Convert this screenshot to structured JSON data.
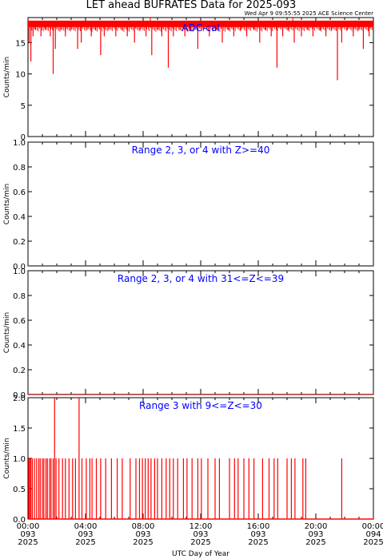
{
  "title": "LET ahead BUFRATES Data for 2025-093",
  "timestamp": "Wed Apr  9 09:55:55 2025 ACE Science Center",
  "xlabel": "UTC Day of Year",
  "colors": {
    "data": "#ff0000",
    "panel_title": "#0000ff",
    "axes": "#000000"
  },
  "x_ticks": [
    {
      "time": "00:00",
      "doy": "093",
      "year": "2025"
    },
    {
      "time": "04:00",
      "doy": "093",
      "year": "2025"
    },
    {
      "time": "08:00",
      "doy": "093",
      "year": "2025"
    },
    {
      "time": "12:00",
      "doy": "093",
      "year": "2025"
    },
    {
      "time": "16:00",
      "doy": "093",
      "year": "2025"
    },
    {
      "time": "20:00",
      "doy": "093",
      "year": "2025"
    },
    {
      "time": "00:00",
      "doy": "094",
      "year": "2025"
    }
  ],
  "chart_data": [
    {
      "type": "line",
      "title": "ADC-cal",
      "ylabel": "Counts/min",
      "xlim": [
        0,
        24
      ],
      "ylim": [
        0,
        19
      ],
      "yticks": [
        "0",
        "5",
        "10",
        "15"
      ],
      "ytick_values": [
        0,
        5,
        10,
        15
      ],
      "baseline": 18,
      "dips": [
        [
          0.08,
          15
        ],
        [
          0.2,
          12
        ],
        [
          0.35,
          16
        ],
        [
          0.5,
          17
        ],
        [
          0.9,
          16
        ],
        [
          1.2,
          17
        ],
        [
          1.55,
          16
        ],
        [
          1.75,
          10
        ],
        [
          1.9,
          14
        ],
        [
          2.3,
          17
        ],
        [
          2.6,
          16
        ],
        [
          3.0,
          17
        ],
        [
          3.45,
          14
        ],
        [
          3.7,
          15
        ],
        [
          4.1,
          17
        ],
        [
          4.4,
          16
        ],
        [
          4.7,
          17
        ],
        [
          5.05,
          13
        ],
        [
          5.3,
          16
        ],
        [
          5.6,
          17
        ],
        [
          6.1,
          16
        ],
        [
          6.5,
          17
        ],
        [
          6.9,
          16
        ],
        [
          7.4,
          15
        ],
        [
          7.8,
          17
        ],
        [
          8.2,
          16
        ],
        [
          8.6,
          13
        ],
        [
          9.0,
          17
        ],
        [
          9.3,
          16
        ],
        [
          9.75,
          11
        ],
        [
          10.1,
          16
        ],
        [
          10.5,
          17
        ],
        [
          10.9,
          16
        ],
        [
          11.3,
          17
        ],
        [
          11.8,
          14
        ],
        [
          12.2,
          17
        ],
        [
          12.6,
          16
        ],
        [
          13.1,
          17
        ],
        [
          13.5,
          15
        ],
        [
          13.9,
          17
        ],
        [
          14.3,
          16
        ],
        [
          14.8,
          17
        ],
        [
          15.2,
          16
        ],
        [
          15.7,
          17
        ],
        [
          16.1,
          15
        ],
        [
          16.5,
          17
        ],
        [
          16.9,
          16
        ],
        [
          17.3,
          11
        ],
        [
          17.7,
          16
        ],
        [
          18.1,
          17
        ],
        [
          18.5,
          15
        ],
        [
          19.0,
          16
        ],
        [
          19.4,
          17
        ],
        [
          19.8,
          16
        ],
        [
          20.3,
          17
        ],
        [
          20.7,
          16
        ],
        [
          21.1,
          17
        ],
        [
          21.5,
          9
        ],
        [
          21.8,
          15
        ],
        [
          22.2,
          17
        ],
        [
          22.6,
          16
        ],
        [
          23.0,
          17
        ],
        [
          23.3,
          14
        ],
        [
          23.7,
          16
        ]
      ]
    },
    {
      "type": "line",
      "title": "Range 2, 3, or 4 with Z>=40",
      "ylabel": "Counts/min",
      "xlim": [
        0,
        24
      ],
      "ylim": [
        0,
        1
      ],
      "yticks": [
        "0.0",
        "0.2",
        "0.4",
        "0.6",
        "0.8",
        "1.0"
      ],
      "ytick_values": [
        0,
        0.2,
        0.4,
        0.6,
        0.8,
        1.0
      ],
      "x": [
        0,
        24
      ],
      "values": [
        0,
        0
      ]
    },
    {
      "type": "line",
      "title": "Range 2, 3, or 4 with 31<=Z<=39",
      "ylabel": "Counts/min",
      "xlim": [
        0,
        24
      ],
      "ylim": [
        0,
        1
      ],
      "yticks": [
        "0.0",
        "0.2",
        "0.4",
        "0.6",
        "0.8",
        "1.0"
      ],
      "ytick_values": [
        0,
        0.2,
        0.4,
        0.6,
        0.8,
        1.0
      ],
      "x": [
        0,
        24
      ],
      "values": [
        0,
        0
      ]
    },
    {
      "type": "line",
      "title": "Range 3 with 9<=Z<=30",
      "ylabel": "Counts/min",
      "xlim": [
        0,
        24
      ],
      "ylim": [
        0,
        2
      ],
      "yticks": [
        "0.0",
        "0.5",
        "1.0",
        "1.5",
        "2.0"
      ],
      "ytick_values": [
        0,
        0.5,
        1.0,
        1.5,
        2.0
      ],
      "spikes": [
        [
          0.05,
          1
        ],
        [
          0.12,
          1
        ],
        [
          0.2,
          1
        ],
        [
          0.3,
          1
        ],
        [
          0.45,
          1
        ],
        [
          0.6,
          1
        ],
        [
          0.75,
          1
        ],
        [
          0.85,
          1
        ],
        [
          1.0,
          1
        ],
        [
          1.1,
          1
        ],
        [
          1.25,
          1
        ],
        [
          1.35,
          1
        ],
        [
          1.5,
          1
        ],
        [
          1.6,
          1
        ],
        [
          1.75,
          1
        ],
        [
          1.85,
          2
        ],
        [
          1.95,
          1
        ],
        [
          2.15,
          1
        ],
        [
          2.4,
          1
        ],
        [
          2.6,
          1
        ],
        [
          2.85,
          1
        ],
        [
          3.1,
          1
        ],
        [
          3.3,
          1
        ],
        [
          3.55,
          2
        ],
        [
          3.75,
          1
        ],
        [
          4.05,
          1
        ],
        [
          4.3,
          1
        ],
        [
          4.45,
          1
        ],
        [
          4.75,
          1
        ],
        [
          5.05,
          1
        ],
        [
          5.4,
          1
        ],
        [
          5.8,
          1
        ],
        [
          6.2,
          1
        ],
        [
          6.55,
          1
        ],
        [
          7.1,
          1
        ],
        [
          7.5,
          1
        ],
        [
          7.75,
          1
        ],
        [
          7.95,
          1
        ],
        [
          8.15,
          1
        ],
        [
          8.35,
          1
        ],
        [
          8.55,
          1
        ],
        [
          8.8,
          1
        ],
        [
          9.0,
          1
        ],
        [
          9.3,
          1
        ],
        [
          9.6,
          1
        ],
        [
          9.85,
          1
        ],
        [
          10.1,
          1
        ],
        [
          10.4,
          1
        ],
        [
          10.8,
          1
        ],
        [
          11.05,
          1
        ],
        [
          11.4,
          1
        ],
        [
          11.8,
          1
        ],
        [
          12.05,
          1
        ],
        [
          12.5,
          1
        ],
        [
          13.0,
          1
        ],
        [
          13.3,
          1
        ],
        [
          14.0,
          1
        ],
        [
          14.35,
          1
        ],
        [
          14.6,
          1
        ],
        [
          15.0,
          1
        ],
        [
          15.35,
          1
        ],
        [
          15.7,
          1
        ],
        [
          16.3,
          1
        ],
        [
          16.75,
          1
        ],
        [
          17.1,
          1
        ],
        [
          17.35,
          1
        ],
        [
          18.0,
          1
        ],
        [
          18.3,
          1
        ],
        [
          18.55,
          1
        ],
        [
          19.1,
          1
        ],
        [
          19.3,
          1
        ],
        [
          21.8,
          1
        ]
      ]
    }
  ]
}
